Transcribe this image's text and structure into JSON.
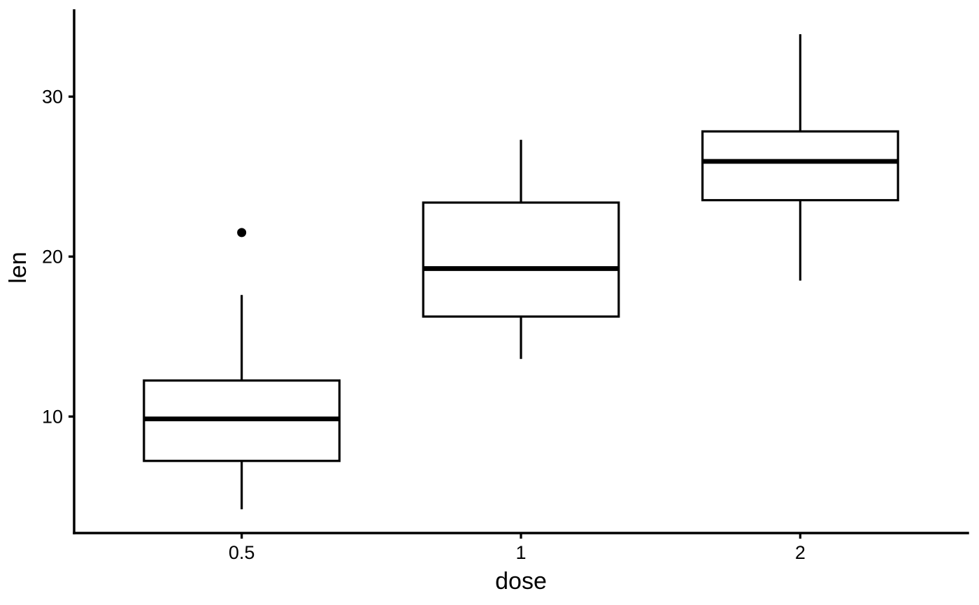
{
  "chart_data": {
    "type": "boxplot",
    "title": "",
    "xlabel": "dose",
    "ylabel": "len",
    "categories": [
      "0.5",
      "1",
      "2"
    ],
    "y_ticks": [
      "10",
      "20",
      "30"
    ],
    "y_tick_values": [
      10,
      20,
      30
    ],
    "ylim": [
      2.715,
      35.385
    ],
    "grid": false,
    "legend_position": "none",
    "orientation": "vertical",
    "colors": {
      "stroke": "#000000",
      "box_fill": "#ffffff",
      "text": "#000000",
      "background": "#ffffff"
    },
    "series": [
      {
        "category": "0.5",
        "lower_whisker": 4.2,
        "q1": 7.225,
        "median": 9.85,
        "q3": 12.25,
        "upper_whisker": 17.6,
        "outliers": [
          21.5
        ]
      },
      {
        "category": "1",
        "lower_whisker": 13.6,
        "q1": 16.25,
        "median": 19.25,
        "q3": 23.375,
        "upper_whisker": 27.3,
        "outliers": []
      },
      {
        "category": "2",
        "lower_whisker": 18.5,
        "q1": 23.525,
        "median": 25.95,
        "q3": 27.825,
        "upper_whisker": 33.9,
        "outliers": []
      }
    ]
  }
}
